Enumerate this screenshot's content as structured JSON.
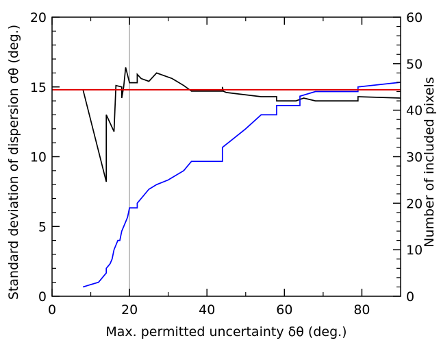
{
  "chart_data": {
    "type": "line",
    "xlabel": "Max. permitted uncertainty δθ (deg.)",
    "ylabel_left": "Standard deviation of dispersion σθ (deg.)",
    "ylabel_right": "Number of included pixels",
    "xlim": [
      0,
      90
    ],
    "ylim_left": [
      0,
      20
    ],
    "ylim_right": [
      0,
      60
    ],
    "x_ticks": [
      0,
      20,
      40,
      60,
      80
    ],
    "y_ticks_left": [
      0,
      5,
      10,
      15,
      20
    ],
    "y_ticks_right": [
      0,
      10,
      20,
      30,
      40,
      50,
      60
    ],
    "grid": false,
    "legend": "none",
    "series": [
      {
        "axis": "left",
        "color": "#000000",
        "points": [
          [
            8,
            14.8
          ],
          [
            14,
            8.2
          ],
          [
            14,
            13.0
          ],
          [
            16,
            11.8
          ],
          [
            16.5,
            15.1
          ],
          [
            18,
            15.0
          ],
          [
            18,
            14.2
          ],
          [
            18.5,
            15.0
          ],
          [
            19,
            16.4
          ],
          [
            20,
            15.3
          ],
          [
            22,
            15.3
          ],
          [
            22,
            15.9
          ],
          [
            23,
            15.6
          ],
          [
            25,
            15.4
          ],
          [
            27,
            16.0
          ],
          [
            31,
            15.6
          ],
          [
            34,
            15.1
          ],
          [
            36,
            14.7
          ],
          [
            44,
            14.7
          ],
          [
            44,
            15.0
          ],
          [
            44.2,
            14.7
          ],
          [
            45,
            14.6
          ],
          [
            54,
            14.3
          ],
          [
            58,
            14.3
          ],
          [
            58,
            14.0
          ],
          [
            63,
            14.0
          ],
          [
            65,
            14.2
          ],
          [
            68,
            14.0
          ],
          [
            79,
            14.0
          ],
          [
            79,
            14.3
          ],
          [
            90,
            14.2
          ]
        ]
      },
      {
        "axis": "right",
        "color": "#0000ff",
        "points": [
          [
            8,
            2
          ],
          [
            12,
            3
          ],
          [
            14,
            5
          ],
          [
            14,
            6
          ],
          [
            15,
            7
          ],
          [
            15.5,
            8
          ],
          [
            16,
            10
          ],
          [
            17,
            12
          ],
          [
            17.5,
            12
          ],
          [
            18,
            14
          ],
          [
            19,
            16
          ],
          [
            19.5,
            17
          ],
          [
            20,
            19
          ],
          [
            22,
            19
          ],
          [
            22,
            20
          ],
          [
            25,
            23
          ],
          [
            27,
            24
          ],
          [
            30,
            25
          ],
          [
            34,
            27
          ],
          [
            36,
            29
          ],
          [
            44,
            29
          ],
          [
            44,
            32
          ],
          [
            47,
            34
          ],
          [
            50,
            36
          ],
          [
            54,
            39
          ],
          [
            58,
            39
          ],
          [
            58,
            41
          ],
          [
            64,
            41
          ],
          [
            64,
            43
          ],
          [
            68,
            44
          ],
          [
            79,
            44
          ],
          [
            79,
            45
          ],
          [
            90,
            46
          ]
        ]
      }
    ],
    "reference_lines": [
      {
        "orientation": "horizontal",
        "axis": "left",
        "value": 14.8,
        "color": "#e00000"
      },
      {
        "orientation": "vertical",
        "value": 20,
        "color": "#b0b0b0"
      }
    ]
  }
}
